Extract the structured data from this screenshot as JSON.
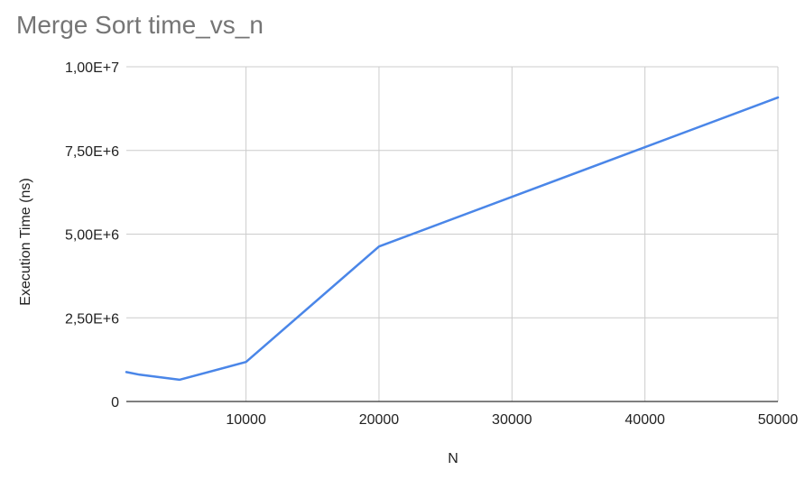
{
  "chart_data": {
    "type": "line",
    "title": "Merge Sort time_vs_n",
    "xlabel": "N",
    "ylabel": "Execution Time (ns)",
    "xlim": [
      1000,
      50000
    ],
    "ylim": [
      0,
      10000000
    ],
    "x_ticks": [
      10000,
      20000,
      30000,
      40000,
      50000
    ],
    "x_tick_labels": [
      "10000",
      "20000",
      "30000",
      "40000",
      "50000"
    ],
    "y_ticks": [
      0,
      2500000,
      5000000,
      7500000,
      10000000
    ],
    "y_tick_labels": [
      "0",
      "2,50E+6",
      "5,00E+6",
      "7,50E+6",
      "1,00E+7"
    ],
    "grid": true,
    "line_color": "#4a86e8",
    "series": [
      {
        "x": [
          1000,
          2000,
          5000,
          10000,
          20000,
          50000
        ],
        "values": [
          880000,
          800000,
          650000,
          1180000,
          4630000,
          9080000
        ]
      }
    ]
  }
}
